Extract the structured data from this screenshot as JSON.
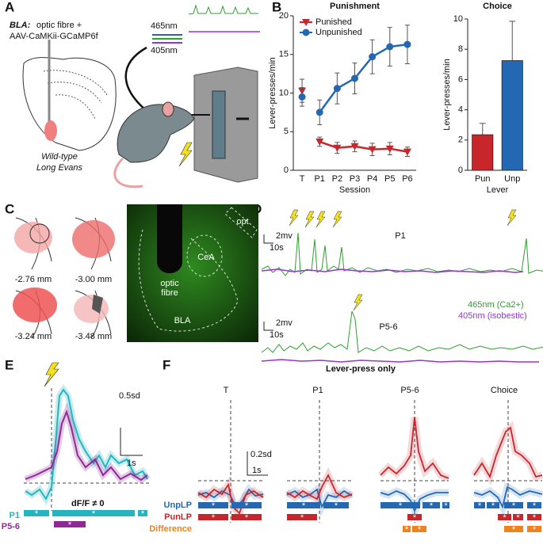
{
  "panel_labels": [
    "A",
    "B",
    "C",
    "D",
    "E",
    "F"
  ],
  "panel_a": {
    "construct_label": "BLA:",
    "construct_line1": "optic fibre +",
    "construct_line2": "AAV-CaMKii-GCaMP6f",
    "wavelength_465": "465nm",
    "wavelength_405": "405nm",
    "strain_line1": "Wild-type",
    "strain_line2": "Long Evans"
  },
  "panel_c": {
    "sections": [
      "-2.76 mm",
      "-3.00 mm",
      "-3.24 mm",
      "-3.48 mm"
    ],
    "image_labels": {
      "fibre_1": "optic",
      "fibre_2": "fibre",
      "cea": "CeA",
      "opt": "opt",
      "bla": "BLA"
    }
  },
  "panel_d": {
    "session_1": "P1",
    "session_2": "P5-6",
    "scale_y": "2mv",
    "scale_x": "10s",
    "legend_465": "465nm (Ca2+)",
    "legend_405": "405nm (isobestic)"
  },
  "panel_e": {
    "scale_y": "0.5sd",
    "scale_x": "1s",
    "test_label": "dF/F ≠ 0",
    "rows": [
      "P1",
      "P5-6"
    ],
    "star": "*"
  },
  "panel_f": {
    "title": "Lever-press only",
    "columns": [
      "T",
      "P1",
      "P5-6",
      "Choice"
    ],
    "scale_y": "0.2sd",
    "scale_x": "1s",
    "rows": [
      "UnpLP",
      "PunLP",
      "Difference"
    ],
    "star": "*"
  },
  "chart_data": [
    {
      "type": "line",
      "title": "Punishment",
      "x_label": "Session",
      "y_label": "Lever-presses/min",
      "categories": [
        "T",
        "P1",
        "P2",
        "P3",
        "P4",
        "P5",
        "P6"
      ],
      "line_starts_at": "P1",
      "ylim": [
        0,
        20
      ],
      "yticks": [
        0,
        5,
        10,
        15,
        20
      ],
      "legend": "top-left",
      "series": [
        {
          "name": "Punished",
          "color": "#c8262b",
          "marker": "triangle-down",
          "values": [
            10.3,
            3.7,
            2.9,
            3.1,
            2.7,
            2.8,
            2.4
          ],
          "errors": [
            1.5,
            0.6,
            0.7,
            0.7,
            0.8,
            0.8,
            0.6
          ]
        },
        {
          "name": "Unpunished",
          "color": "#2468b4",
          "marker": "circle",
          "values": [
            9.5,
            7.5,
            10.6,
            11.9,
            14.7,
            16.0,
            16.3
          ],
          "errors": [
            1.2,
            1.6,
            2.0,
            2.0,
            2.2,
            2.5,
            2.5
          ]
        }
      ]
    },
    {
      "type": "bar",
      "title": "Choice",
      "x_label": "Lever",
      "y_label": "Lever-presses/min",
      "categories": [
        "Pun",
        "Unp"
      ],
      "values": [
        2.35,
        7.25
      ],
      "errors": [
        0.75,
        2.6
      ],
      "colors": [
        "#c8262b",
        "#2468b4"
      ],
      "ylim": [
        0,
        10
      ],
      "yticks": [
        0,
        2,
        4,
        6,
        8,
        10
      ]
    }
  ]
}
